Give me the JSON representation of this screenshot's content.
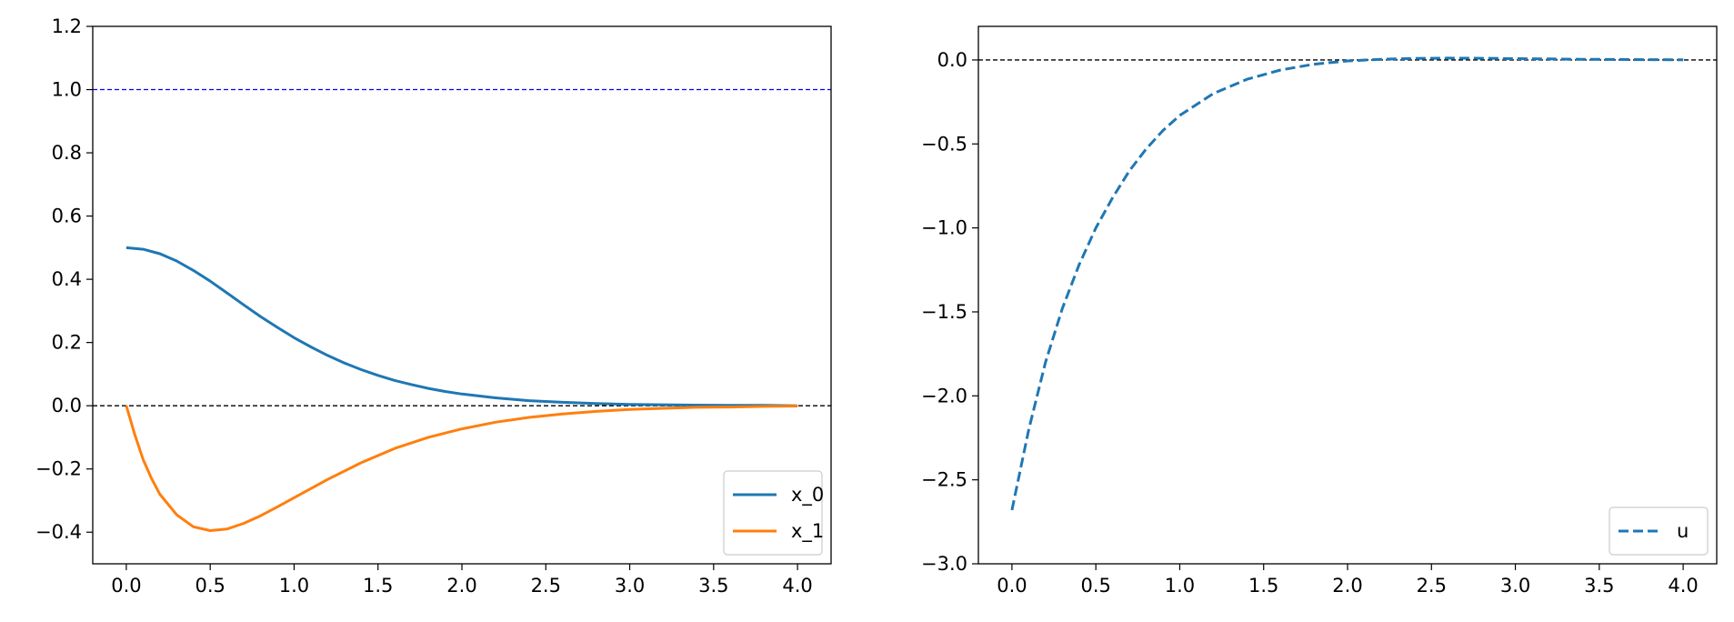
{
  "chart_data": [
    {
      "type": "line",
      "title": "",
      "xlabel": "",
      "ylabel": "",
      "xlim": [
        -0.2,
        4.2
      ],
      "ylim": [
        -0.5,
        1.2
      ],
      "xticks": [
        0.0,
        0.5,
        1.0,
        1.5,
        2.0,
        2.5,
        3.0,
        3.5,
        4.0
      ],
      "yticks": [
        -0.4,
        -0.2,
        0.0,
        0.2,
        0.4,
        0.6,
        0.8,
        1.0,
        1.2
      ],
      "xtick_labels": [
        "0.0",
        "0.5",
        "1.0",
        "1.5",
        "2.0",
        "2.5",
        "3.0",
        "3.5",
        "4.0"
      ],
      "ytick_labels": [
        "−0.4",
        "−0.2",
        "0.0",
        "0.2",
        "0.4",
        "0.6",
        "0.8",
        "1.0",
        "1.2"
      ],
      "grid": false,
      "legend_position": "lower-right",
      "reference_lines": [
        {
          "y": 1.0,
          "color": "#0000ff",
          "style": "dashed"
        },
        {
          "y": 0.0,
          "color": "#000000",
          "style": "dashed"
        }
      ],
      "series": [
        {
          "name": "x_0",
          "color": "#1f77b4",
          "style": "solid",
          "x": [
            0.0,
            0.1,
            0.2,
            0.3,
            0.4,
            0.5,
            0.6,
            0.7,
            0.8,
            0.9,
            1.0,
            1.1,
            1.2,
            1.3,
            1.4,
            1.5,
            1.6,
            1.7,
            1.8,
            1.9,
            2.0,
            2.2,
            2.4,
            2.6,
            2.8,
            3.0,
            3.2,
            3.4,
            3.6,
            3.8,
            4.0
          ],
          "y": [
            0.5,
            0.495,
            0.481,
            0.458,
            0.428,
            0.394,
            0.357,
            0.319,
            0.282,
            0.248,
            0.215,
            0.186,
            0.159,
            0.135,
            0.114,
            0.096,
            0.08,
            0.067,
            0.055,
            0.045,
            0.037,
            0.025,
            0.016,
            0.011,
            0.007,
            0.004,
            0.003,
            0.002,
            0.001,
            0.001,
            0.0
          ]
        },
        {
          "name": "x_1",
          "color": "#ff7f0e",
          "style": "solid",
          "x": [
            0.0,
            0.05,
            0.1,
            0.15,
            0.2,
            0.3,
            0.4,
            0.5,
            0.6,
            0.7,
            0.8,
            0.9,
            1.0,
            1.2,
            1.4,
            1.6,
            1.8,
            2.0,
            2.2,
            2.4,
            2.6,
            2.8,
            3.0,
            3.2,
            3.4,
            3.6,
            3.8,
            4.0
          ],
          "y": [
            0.0,
            -0.09,
            -0.17,
            -0.23,
            -0.28,
            -0.345,
            -0.383,
            -0.395,
            -0.39,
            -0.372,
            -0.348,
            -0.32,
            -0.291,
            -0.233,
            -0.18,
            -0.135,
            -0.1,
            -0.073,
            -0.052,
            -0.037,
            -0.026,
            -0.018,
            -0.012,
            -0.008,
            -0.005,
            -0.004,
            -0.002,
            -0.001
          ]
        }
      ]
    },
    {
      "type": "line",
      "title": "",
      "xlabel": "",
      "ylabel": "",
      "xlim": [
        -0.2,
        4.2
      ],
      "ylim": [
        -3.0,
        0.2
      ],
      "xticks": [
        0.0,
        0.5,
        1.0,
        1.5,
        2.0,
        2.5,
        3.0,
        3.5,
        4.0
      ],
      "yticks": [
        -3.0,
        -2.5,
        -2.0,
        -1.5,
        -1.0,
        -0.5,
        0.0
      ],
      "xtick_labels": [
        "0.0",
        "0.5",
        "1.0",
        "1.5",
        "2.0",
        "2.5",
        "3.0",
        "3.5",
        "4.0"
      ],
      "ytick_labels": [
        "−3.0",
        "−2.5",
        "−2.0",
        "−1.5",
        "−1.0",
        "−0.5",
        "0.0"
      ],
      "grid": false,
      "legend_position": "lower-right",
      "reference_lines": [
        {
          "y": 0.0,
          "color": "#000000",
          "style": "dashed"
        }
      ],
      "series": [
        {
          "name": "u",
          "color": "#1f77b4",
          "style": "dashed",
          "x": [
            0.0,
            0.1,
            0.2,
            0.3,
            0.4,
            0.5,
            0.6,
            0.7,
            0.8,
            0.9,
            1.0,
            1.2,
            1.4,
            1.6,
            1.8,
            2.0,
            2.2,
            2.4,
            2.6,
            2.8,
            3.0,
            3.2,
            3.4,
            3.6,
            3.8,
            4.0
          ],
          "y": [
            -2.68,
            -2.2,
            -1.8,
            -1.48,
            -1.22,
            -1.0,
            -0.82,
            -0.66,
            -0.53,
            -0.42,
            -0.33,
            -0.2,
            -0.115,
            -0.06,
            -0.025,
            -0.006,
            0.004,
            0.009,
            0.011,
            0.01,
            0.008,
            0.006,
            0.004,
            0.003,
            0.002,
            0.001
          ]
        }
      ]
    }
  ]
}
